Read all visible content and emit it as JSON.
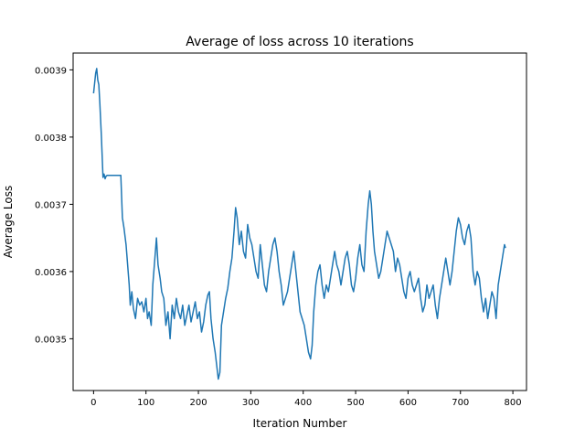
{
  "chart_data": {
    "type": "line",
    "title": "Average of loss across 10 iterations",
    "xlabel": "Iteration Number",
    "ylabel": "Average Loss",
    "xlim": [
      -39,
      826
    ],
    "ylim": [
      0.003423,
      0.003925
    ],
    "xticks": [
      0,
      100,
      200,
      300,
      400,
      500,
      600,
      700,
      800
    ],
    "yticks": [
      0.0035,
      0.0036,
      0.0037,
      0.0038,
      0.0039
    ],
    "ytick_labels": [
      "0.0035",
      "0.0036",
      "0.0037",
      "0.0038",
      "0.0039"
    ],
    "grid": false,
    "series": [
      {
        "color": "#1f77b4",
        "points": [
          [
            0,
            0.003865
          ],
          [
            2,
            0.00388
          ],
          [
            4,
            0.003895
          ],
          [
            6,
            0.003902
          ],
          [
            8,
            0.003885
          ],
          [
            10,
            0.003878
          ],
          [
            12,
            0.00385
          ],
          [
            15,
            0.0038
          ],
          [
            18,
            0.00374
          ],
          [
            20,
            0.003745
          ],
          [
            22,
            0.003738
          ],
          [
            24,
            0.003742
          ],
          [
            26,
            0.003743
          ],
          [
            30,
            0.003743
          ],
          [
            38,
            0.003743
          ],
          [
            46,
            0.003743
          ],
          [
            52,
            0.003743
          ],
          [
            55,
            0.00368
          ],
          [
            58,
            0.003665
          ],
          [
            62,
            0.00364
          ],
          [
            65,
            0.00361
          ],
          [
            68,
            0.00358
          ],
          [
            70,
            0.00355
          ],
          [
            73,
            0.00357
          ],
          [
            76,
            0.003545
          ],
          [
            80,
            0.00353
          ],
          [
            84,
            0.00356
          ],
          [
            88,
            0.00355
          ],
          [
            92,
            0.003555
          ],
          [
            96,
            0.00354
          ],
          [
            100,
            0.00356
          ],
          [
            103,
            0.00353
          ],
          [
            106,
            0.00354
          ],
          [
            110,
            0.00352
          ],
          [
            113,
            0.00358
          ],
          [
            117,
            0.00362
          ],
          [
            120,
            0.00365
          ],
          [
            123,
            0.00361
          ],
          [
            127,
            0.00359
          ],
          [
            130,
            0.00357
          ],
          [
            134,
            0.00356
          ],
          [
            138,
            0.00352
          ],
          [
            142,
            0.00354
          ],
          [
            146,
            0.0035
          ],
          [
            150,
            0.00355
          ],
          [
            154,
            0.00353
          ],
          [
            158,
            0.00356
          ],
          [
            162,
            0.00354
          ],
          [
            166,
            0.00353
          ],
          [
            170,
            0.00355
          ],
          [
            174,
            0.00352
          ],
          [
            178,
            0.003535
          ],
          [
            182,
            0.00355
          ],
          [
            186,
            0.003525
          ],
          [
            190,
            0.00354
          ],
          [
            194,
            0.003555
          ],
          [
            198,
            0.00353
          ],
          [
            202,
            0.00354
          ],
          [
            206,
            0.00351
          ],
          [
            210,
            0.003525
          ],
          [
            214,
            0.00355
          ],
          [
            218,
            0.003565
          ],
          [
            221,
            0.00357
          ],
          [
            224,
            0.00353
          ],
          [
            228,
            0.0035
          ],
          [
            232,
            0.00348
          ],
          [
            235,
            0.00346
          ],
          [
            238,
            0.00344
          ],
          [
            241,
            0.00345
          ],
          [
            244,
            0.00352
          ],
          [
            248,
            0.00354
          ],
          [
            252,
            0.00356
          ],
          [
            256,
            0.003575
          ],
          [
            260,
            0.0036
          ],
          [
            264,
            0.00362
          ],
          [
            268,
            0.00366
          ],
          [
            271,
            0.003695
          ],
          [
            274,
            0.00368
          ],
          [
            278,
            0.00364
          ],
          [
            282,
            0.00366
          ],
          [
            286,
            0.00363
          ],
          [
            290,
            0.00362
          ],
          [
            294,
            0.00367
          ],
          [
            298,
            0.00365
          ],
          [
            302,
            0.00364
          ],
          [
            306,
            0.00362
          ],
          [
            310,
            0.0036
          ],
          [
            314,
            0.00359
          ],
          [
            318,
            0.00364
          ],
          [
            322,
            0.00361
          ],
          [
            326,
            0.00358
          ],
          [
            330,
            0.00357
          ],
          [
            334,
            0.0036
          ],
          [
            338,
            0.00362
          ],
          [
            342,
            0.00364
          ],
          [
            346,
            0.00365
          ],
          [
            350,
            0.00363
          ],
          [
            354,
            0.0036
          ],
          [
            358,
            0.00358
          ],
          [
            362,
            0.00355
          ],
          [
            366,
            0.00356
          ],
          [
            370,
            0.00357
          ],
          [
            374,
            0.00359
          ],
          [
            378,
            0.00361
          ],
          [
            382,
            0.00363
          ],
          [
            386,
            0.0036
          ],
          [
            390,
            0.00357
          ],
          [
            394,
            0.00354
          ],
          [
            398,
            0.00353
          ],
          [
            402,
            0.00352
          ],
          [
            406,
            0.0035
          ],
          [
            410,
            0.00348
          ],
          [
            414,
            0.00347
          ],
          [
            417,
            0.00349
          ],
          [
            420,
            0.00354
          ],
          [
            424,
            0.00358
          ],
          [
            428,
            0.0036
          ],
          [
            432,
            0.00361
          ],
          [
            436,
            0.00358
          ],
          [
            440,
            0.00356
          ],
          [
            444,
            0.00358
          ],
          [
            448,
            0.00357
          ],
          [
            452,
            0.00359
          ],
          [
            456,
            0.00361
          ],
          [
            460,
            0.00363
          ],
          [
            464,
            0.00361
          ],
          [
            468,
            0.0036
          ],
          [
            472,
            0.00358
          ],
          [
            476,
            0.0036
          ],
          [
            480,
            0.00362
          ],
          [
            484,
            0.00363
          ],
          [
            488,
            0.00361
          ],
          [
            492,
            0.00358
          ],
          [
            496,
            0.00357
          ],
          [
            500,
            0.00359
          ],
          [
            504,
            0.00362
          ],
          [
            508,
            0.00364
          ],
          [
            512,
            0.00361
          ],
          [
            516,
            0.0036
          ],
          [
            520,
            0.00366
          ],
          [
            524,
            0.0037
          ],
          [
            527,
            0.00372
          ],
          [
            530,
            0.0037
          ],
          [
            533,
            0.00366
          ],
          [
            536,
            0.00363
          ],
          [
            540,
            0.00361
          ],
          [
            544,
            0.00359
          ],
          [
            548,
            0.0036
          ],
          [
            552,
            0.00362
          ],
          [
            556,
            0.00364
          ],
          [
            560,
            0.00366
          ],
          [
            564,
            0.00365
          ],
          [
            568,
            0.00364
          ],
          [
            572,
            0.00363
          ],
          [
            576,
            0.0036
          ],
          [
            580,
            0.00362
          ],
          [
            584,
            0.00361
          ],
          [
            588,
            0.00359
          ],
          [
            592,
            0.00357
          ],
          [
            596,
            0.00356
          ],
          [
            600,
            0.00359
          ],
          [
            604,
            0.0036
          ],
          [
            608,
            0.00358
          ],
          [
            612,
            0.00357
          ],
          [
            616,
            0.00358
          ],
          [
            620,
            0.00359
          ],
          [
            624,
            0.00356
          ],
          [
            628,
            0.00354
          ],
          [
            632,
            0.00355
          ],
          [
            636,
            0.00358
          ],
          [
            640,
            0.00356
          ],
          [
            644,
            0.00357
          ],
          [
            648,
            0.00358
          ],
          [
            652,
            0.00355
          ],
          [
            656,
            0.00353
          ],
          [
            660,
            0.00356
          ],
          [
            664,
            0.00358
          ],
          [
            668,
            0.0036
          ],
          [
            672,
            0.00362
          ],
          [
            676,
            0.0036
          ],
          [
            680,
            0.00358
          ],
          [
            684,
            0.0036
          ],
          [
            688,
            0.00363
          ],
          [
            692,
            0.00366
          ],
          [
            696,
            0.00368
          ],
          [
            700,
            0.00367
          ],
          [
            704,
            0.00365
          ],
          [
            708,
            0.00364
          ],
          [
            712,
            0.00366
          ],
          [
            716,
            0.00367
          ],
          [
            720,
            0.00365
          ],
          [
            724,
            0.0036
          ],
          [
            728,
            0.00358
          ],
          [
            732,
            0.0036
          ],
          [
            736,
            0.00359
          ],
          [
            740,
            0.00356
          ],
          [
            744,
            0.00354
          ],
          [
            748,
            0.00356
          ],
          [
            752,
            0.00353
          ],
          [
            756,
            0.00355
          ],
          [
            760,
            0.00357
          ],
          [
            764,
            0.00356
          ],
          [
            768,
            0.00353
          ],
          [
            772,
            0.00358
          ],
          [
            776,
            0.0036
          ],
          [
            780,
            0.00362
          ],
          [
            784,
            0.00364
          ],
          [
            786,
            0.003635
          ]
        ]
      }
    ]
  }
}
